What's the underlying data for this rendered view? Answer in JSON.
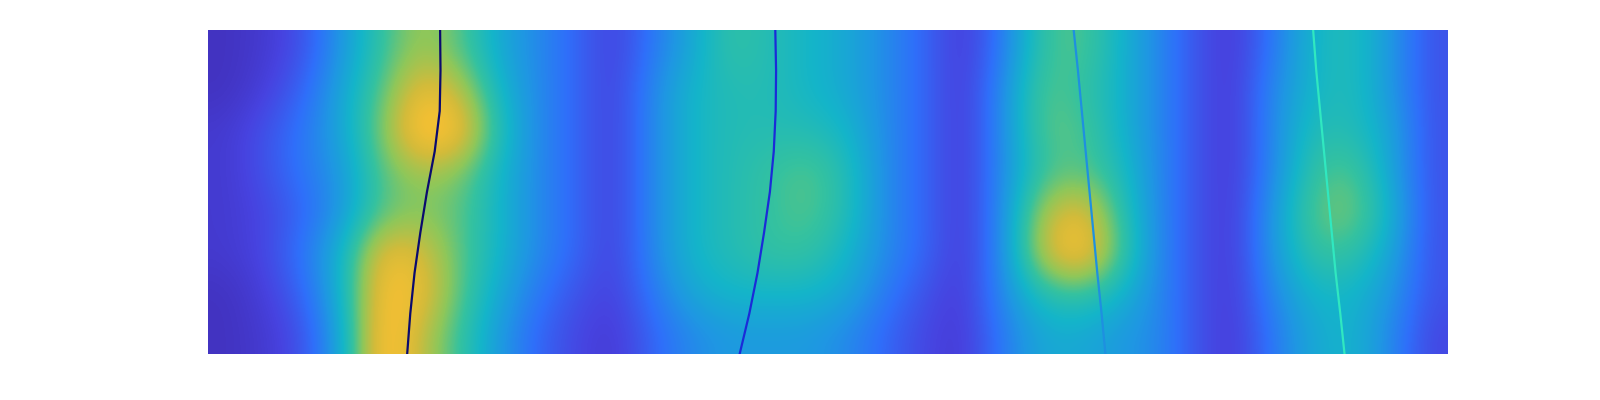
{
  "chart_data": {
    "type": "heatmap",
    "xlim": [
      0,
      32
    ],
    "ylim": [
      8,
      0
    ],
    "xticks": [],
    "yticks": [],
    "tick_labels": false,
    "color_range": [
      0,
      1
    ],
    "cells": [
      [
        0.05,
        0.08,
        0.15,
        0.35,
        0.55,
        0.7,
        0.6,
        0.4,
        0.3,
        0.2,
        0.1,
        0.25,
        0.4,
        0.55,
        0.5,
        0.45,
        0.4,
        0.3,
        0.2,
        0.08,
        0.25,
        0.55,
        0.6,
        0.45,
        0.3,
        0.15,
        0.08,
        0.25,
        0.45,
        0.5,
        0.35,
        0.15
      ],
      [
        0.05,
        0.1,
        0.2,
        0.4,
        0.6,
        0.85,
        0.75,
        0.45,
        0.3,
        0.2,
        0.1,
        0.3,
        0.45,
        0.5,
        0.5,
        0.45,
        0.4,
        0.3,
        0.2,
        0.08,
        0.3,
        0.6,
        0.55,
        0.45,
        0.3,
        0.15,
        0.08,
        0.3,
        0.45,
        0.5,
        0.35,
        0.15
      ],
      [
        0.08,
        0.15,
        0.25,
        0.4,
        0.65,
        0.95,
        0.9,
        0.5,
        0.3,
        0.2,
        0.1,
        0.3,
        0.45,
        0.5,
        0.5,
        0.5,
        0.45,
        0.3,
        0.2,
        0.08,
        0.3,
        0.6,
        0.6,
        0.45,
        0.3,
        0.15,
        0.08,
        0.3,
        0.5,
        0.5,
        0.4,
        0.15
      ],
      [
        0.08,
        0.15,
        0.25,
        0.35,
        0.6,
        0.7,
        0.65,
        0.45,
        0.3,
        0.2,
        0.1,
        0.3,
        0.45,
        0.5,
        0.55,
        0.6,
        0.5,
        0.3,
        0.2,
        0.08,
        0.3,
        0.55,
        0.6,
        0.5,
        0.3,
        0.15,
        0.08,
        0.3,
        0.55,
        0.6,
        0.4,
        0.15
      ],
      [
        0.08,
        0.12,
        0.2,
        0.35,
        0.6,
        0.65,
        0.6,
        0.45,
        0.3,
        0.2,
        0.1,
        0.3,
        0.45,
        0.5,
        0.55,
        0.6,
        0.5,
        0.3,
        0.2,
        0.08,
        0.3,
        0.7,
        0.85,
        0.55,
        0.3,
        0.15,
        0.08,
        0.35,
        0.6,
        0.65,
        0.45,
        0.15
      ],
      [
        0.08,
        0.12,
        0.25,
        0.45,
        0.85,
        0.8,
        0.6,
        0.45,
        0.3,
        0.2,
        0.1,
        0.3,
        0.45,
        0.5,
        0.55,
        0.55,
        0.45,
        0.3,
        0.2,
        0.08,
        0.3,
        0.75,
        0.95,
        0.6,
        0.3,
        0.15,
        0.08,
        0.35,
        0.55,
        0.55,
        0.4,
        0.15
      ],
      [
        0.05,
        0.1,
        0.2,
        0.45,
        0.9,
        0.85,
        0.6,
        0.4,
        0.25,
        0.15,
        0.1,
        0.25,
        0.4,
        0.45,
        0.45,
        0.45,
        0.4,
        0.25,
        0.15,
        0.08,
        0.3,
        0.5,
        0.55,
        0.45,
        0.3,
        0.15,
        0.08,
        0.3,
        0.45,
        0.45,
        0.35,
        0.15
      ],
      [
        0.05,
        0.08,
        0.15,
        0.4,
        0.95,
        0.75,
        0.55,
        0.35,
        0.2,
        0.12,
        0.08,
        0.2,
        0.3,
        0.35,
        0.35,
        0.35,
        0.3,
        0.2,
        0.12,
        0.08,
        0.25,
        0.4,
        0.4,
        0.35,
        0.3,
        0.15,
        0.08,
        0.25,
        0.4,
        0.45,
        0.3,
        0.12
      ]
    ],
    "series": [
      {
        "type": "line",
        "color": "#0a0a6e",
        "x": [
          5.99,
          6.0,
          5.98,
          5.85,
          5.65,
          5.48,
          5.33,
          5.22,
          5.14
        ],
        "y": [
          0,
          1,
          2,
          3,
          4,
          5,
          6,
          7,
          8
        ]
      },
      {
        "type": "line",
        "color": "#1a2bd8",
        "x": [
          14.64,
          14.66,
          14.65,
          14.6,
          14.5,
          14.35,
          14.18,
          13.97,
          13.72
        ],
        "y": [
          0,
          1,
          2,
          3,
          4,
          5,
          6,
          7,
          8
        ]
      },
      {
        "type": "line",
        "color": "#1e90e0",
        "x": [
          22.34,
          22.45,
          22.55,
          22.65,
          22.75,
          22.85,
          22.95,
          23.06,
          23.16
        ],
        "y": [
          0,
          1,
          2,
          3,
          4,
          5,
          6,
          7,
          8
        ]
      },
      {
        "type": "line",
        "color": "#30e8c0",
        "x": [
          28.52,
          28.6,
          28.7,
          28.8,
          28.9,
          29.0,
          29.1,
          29.22,
          29.33
        ],
        "y": [
          0,
          1,
          2,
          3,
          4,
          5,
          6,
          7,
          8
        ]
      }
    ]
  }
}
